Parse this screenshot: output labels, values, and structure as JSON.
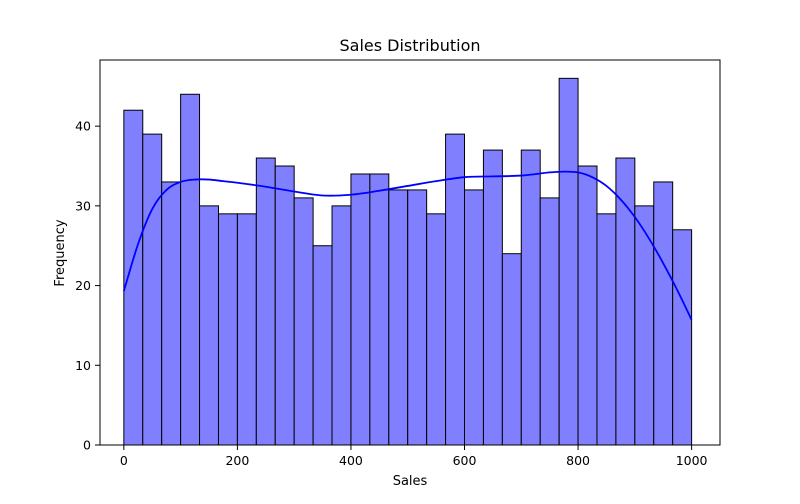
{
  "chart_data": {
    "type": "bar",
    "subtype": "histogram-with-kde",
    "title": "Sales Distribution",
    "xlabel": "Sales",
    "ylabel": "Frequency",
    "xlim": [
      -42,
      1050
    ],
    "ylim": [
      0,
      48.3
    ],
    "xticks": [
      0,
      200,
      400,
      600,
      800,
      1000
    ],
    "yticks": [
      0,
      10,
      20,
      30,
      40
    ],
    "bin_edges": [
      0,
      33.33,
      66.67,
      100,
      133.33,
      166.67,
      200,
      233.33,
      266.67,
      300,
      333.33,
      366.67,
      400,
      433.33,
      466.67,
      500,
      533.33,
      566.67,
      600,
      633.33,
      666.67,
      700,
      733.33,
      766.67,
      800,
      833.33,
      866.67,
      900,
      933.33,
      966.67,
      1000
    ],
    "values": [
      42,
      39,
      33,
      44,
      30,
      29,
      29,
      36,
      35,
      31,
      25,
      30,
      34,
      34,
      32,
      32,
      29,
      39,
      32,
      37,
      24,
      37,
      31,
      46,
      35,
      29,
      36,
      30,
      33,
      27
    ],
    "kde": {
      "x": [
        0,
        25,
        50,
        75,
        100,
        125,
        150,
        175,
        200,
        250,
        300,
        350,
        400,
        450,
        500,
        550,
        600,
        650,
        700,
        750,
        775,
        800,
        825,
        850,
        875,
        900,
        925,
        950,
        975,
        1000
      ],
      "y": [
        19.3,
        25.2,
        29.6,
        32.0,
        33.0,
        33.3,
        33.3,
        33.1,
        32.9,
        32.4,
        31.8,
        31.3,
        31.4,
        31.9,
        32.5,
        33.1,
        33.6,
        33.7,
        33.8,
        34.2,
        34.3,
        34.2,
        33.6,
        32.5,
        30.8,
        28.6,
        25.9,
        22.8,
        19.4,
        15.7
      ]
    },
    "colors": {
      "bar_fill": "#8080ff",
      "bar_edge": "#000000",
      "kde_line": "#0000ff"
    },
    "grid": false,
    "legend": "none"
  }
}
